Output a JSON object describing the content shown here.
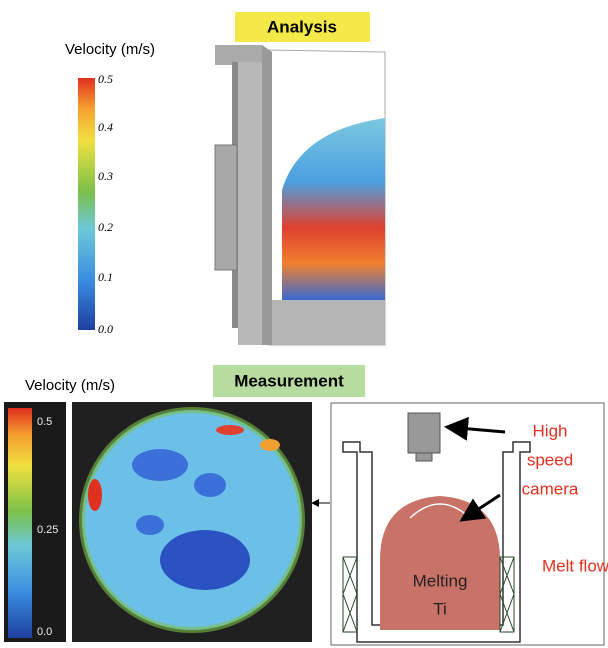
{
  "analysis": {
    "label": "Analysis",
    "colorbar": {
      "title": "Velocity (m/s)",
      "ticks": [
        "0.5",
        "0.4",
        "0.3",
        "0.2",
        "0.1",
        "0.0"
      ]
    }
  },
  "measurement": {
    "label": "Measurement",
    "colorbar": {
      "title": "Velocity (m/s)",
      "ticks": [
        "0.5",
        "0.25",
        "0.0"
      ]
    }
  },
  "diagram": {
    "camera_label": [
      "High",
      "speed",
      "camera"
    ],
    "flow_label": "Melt flow",
    "melt_label": [
      "Melting",
      "Ti"
    ]
  }
}
